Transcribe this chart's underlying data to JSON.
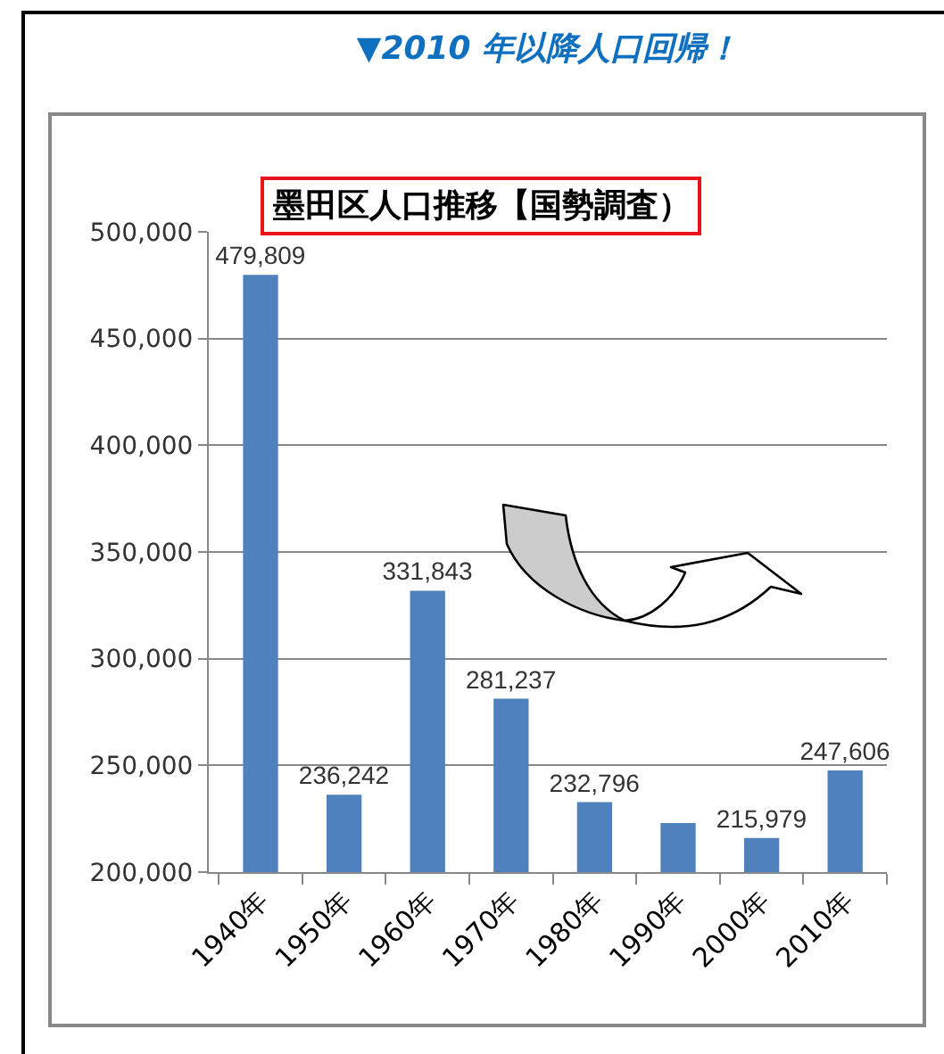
{
  "chart_data": {
    "type": "bar",
    "title": "▼2010 年以降人口回帰！",
    "subtitle": "墨田区人口推移【国勢調査）",
    "categories": [
      "1940年",
      "1950年",
      "1960年",
      "1970年",
      "1980年",
      "1990年",
      "2000年",
      "2010年"
    ],
    "values": [
      479809,
      236242,
      331843,
      281237,
      232796,
      223000,
      215979,
      247606
    ],
    "value_labels": [
      "479,809",
      "236,242",
      "331,843",
      "281,237",
      "232,796",
      null,
      "215,979",
      "247,606"
    ],
    "color": "#4f81bd",
    "ylim": [
      200000,
      500000
    ],
    "yticks": [
      {
        "value": 200000,
        "label": "200,000"
      },
      {
        "value": 250000,
        "label": "250,000"
      },
      {
        "value": 300000,
        "label": "300,000"
      },
      {
        "value": 350000,
        "label": "350,000"
      },
      {
        "value": 400000,
        "label": "400,000"
      },
      {
        "value": 450000,
        "label": "450,000"
      },
      {
        "value": 500000,
        "label": "500,000"
      }
    ],
    "grid": "y",
    "legend": false
  }
}
